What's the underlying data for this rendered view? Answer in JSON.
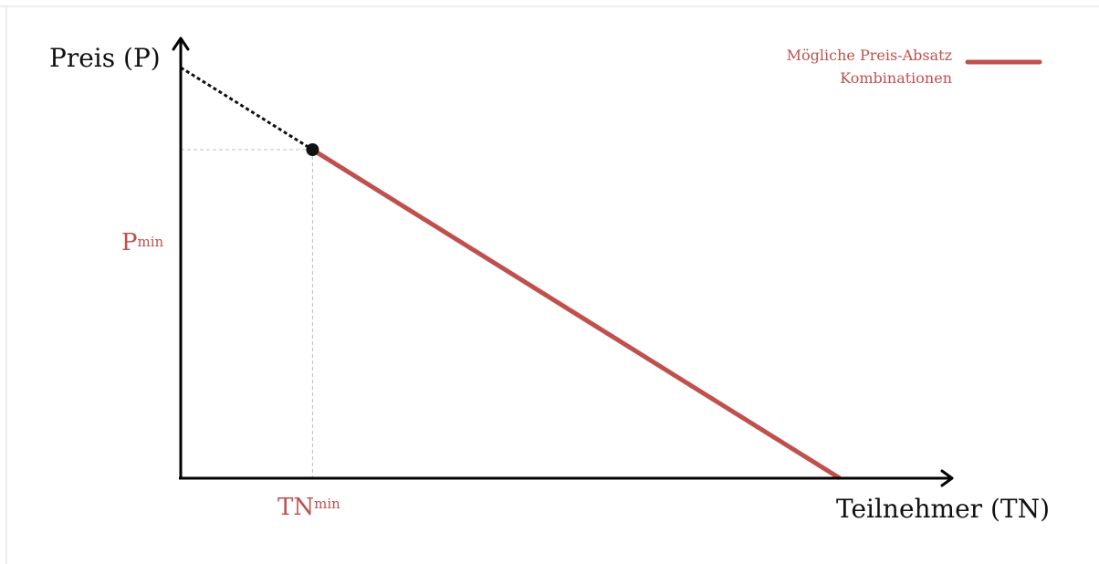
{
  "chart_data": {
    "type": "line",
    "xlabel": "Teilnehmer (TN)",
    "ylabel": "Preis (P)",
    "grid": false,
    "legend_position": "top-right",
    "legend": {
      "line1": "Mögliche Preis-Absatz",
      "line2": "Kombinationen"
    },
    "markers": {
      "x_marker": {
        "base": "TN",
        "sub": "min",
        "value": 0.2
      },
      "y_marker": {
        "base": "P",
        "sub": "min",
        "value": 0.72
      }
    },
    "series": [
      {
        "name": "Mögliche Preis-Absatz Kombinationen",
        "style": "solid",
        "x": [
          0.2,
          1.0
        ],
        "y": [
          0.72,
          0.0
        ]
      },
      {
        "style": "dotted",
        "x": [
          0.0,
          0.2
        ],
        "y": [
          0.9,
          0.72
        ]
      }
    ],
    "point": {
      "x": 0.2,
      "y": 0.72
    },
    "colors": {
      "feasible": "#c0504d",
      "accent_text": "#c0504d",
      "axis": "#000000"
    }
  }
}
